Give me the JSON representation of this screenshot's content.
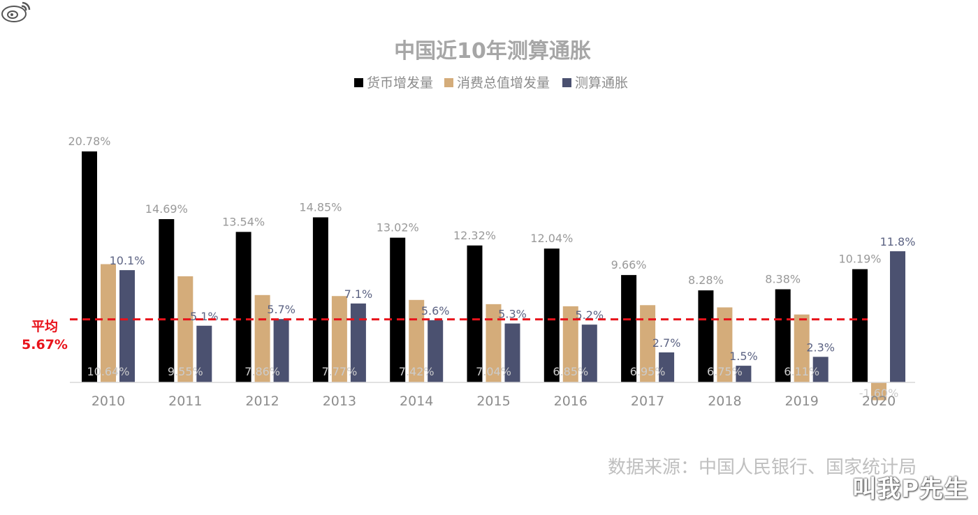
{
  "chart_data": {
    "type": "bar",
    "title": "中国近10年测算通胀",
    "categories": [
      "2010",
      "2011",
      "2012",
      "2013",
      "2014",
      "2015",
      "2016",
      "2017",
      "2018",
      "2019",
      "2020"
    ],
    "series": [
      {
        "name": "货币增发量",
        "color": "#000000",
        "label_color": "#999999",
        "values": [
          20.78,
          14.69,
          13.54,
          14.85,
          13.02,
          12.32,
          12.04,
          9.66,
          8.28,
          8.38,
          10.19
        ],
        "labels": [
          "20.78%",
          "14.69%",
          "13.54%",
          "14.85%",
          "13.02%",
          "12.32%",
          "12.04%",
          "9.66%",
          "8.28%",
          "8.38%",
          "10.19%"
        ]
      },
      {
        "name": "消费总值增发量",
        "color": "#d4ac7a",
        "label_color": "#cccccc",
        "values": [
          10.64,
          9.55,
          7.86,
          7.77,
          7.42,
          7.04,
          6.85,
          6.95,
          6.75,
          6.11,
          -1.6
        ],
        "labels": [
          "10.64%",
          "9.55%",
          "7.86%",
          "7.77%",
          "7.42%",
          "7.04%",
          "6.85%",
          "6.95%",
          "6.75%",
          "6.11%",
          "-1.60%"
        ]
      },
      {
        "name": "测算通胀",
        "color": "#4b5170",
        "label_color": "#5c6383",
        "values": [
          10.1,
          5.1,
          5.7,
          7.1,
          5.6,
          5.3,
          5.2,
          2.7,
          1.5,
          2.3,
          11.8
        ],
        "labels": [
          "10.1%",
          "5.1%",
          "5.7%",
          "7.1%",
          "5.6%",
          "5.3%",
          "5.2%",
          "2.7%",
          "1.5%",
          "2.3%",
          "11.8%"
        ]
      }
    ],
    "average": {
      "value": 5.67,
      "label_top": "平均",
      "label_bottom": "5.67%",
      "color": "#e8131b"
    },
    "ylim": [
      -1.6,
      21
    ],
    "grid": false,
    "legend_position": "top-center"
  },
  "source_note": "数据来源：中国人民银行、国家统计局",
  "watermark": "叫我P先生",
  "colors": {
    "title": "#a6a6a6",
    "axis_text": "#8c8c8c",
    "legend_text": "#8c8c8c",
    "source": "#bfbfbf"
  }
}
